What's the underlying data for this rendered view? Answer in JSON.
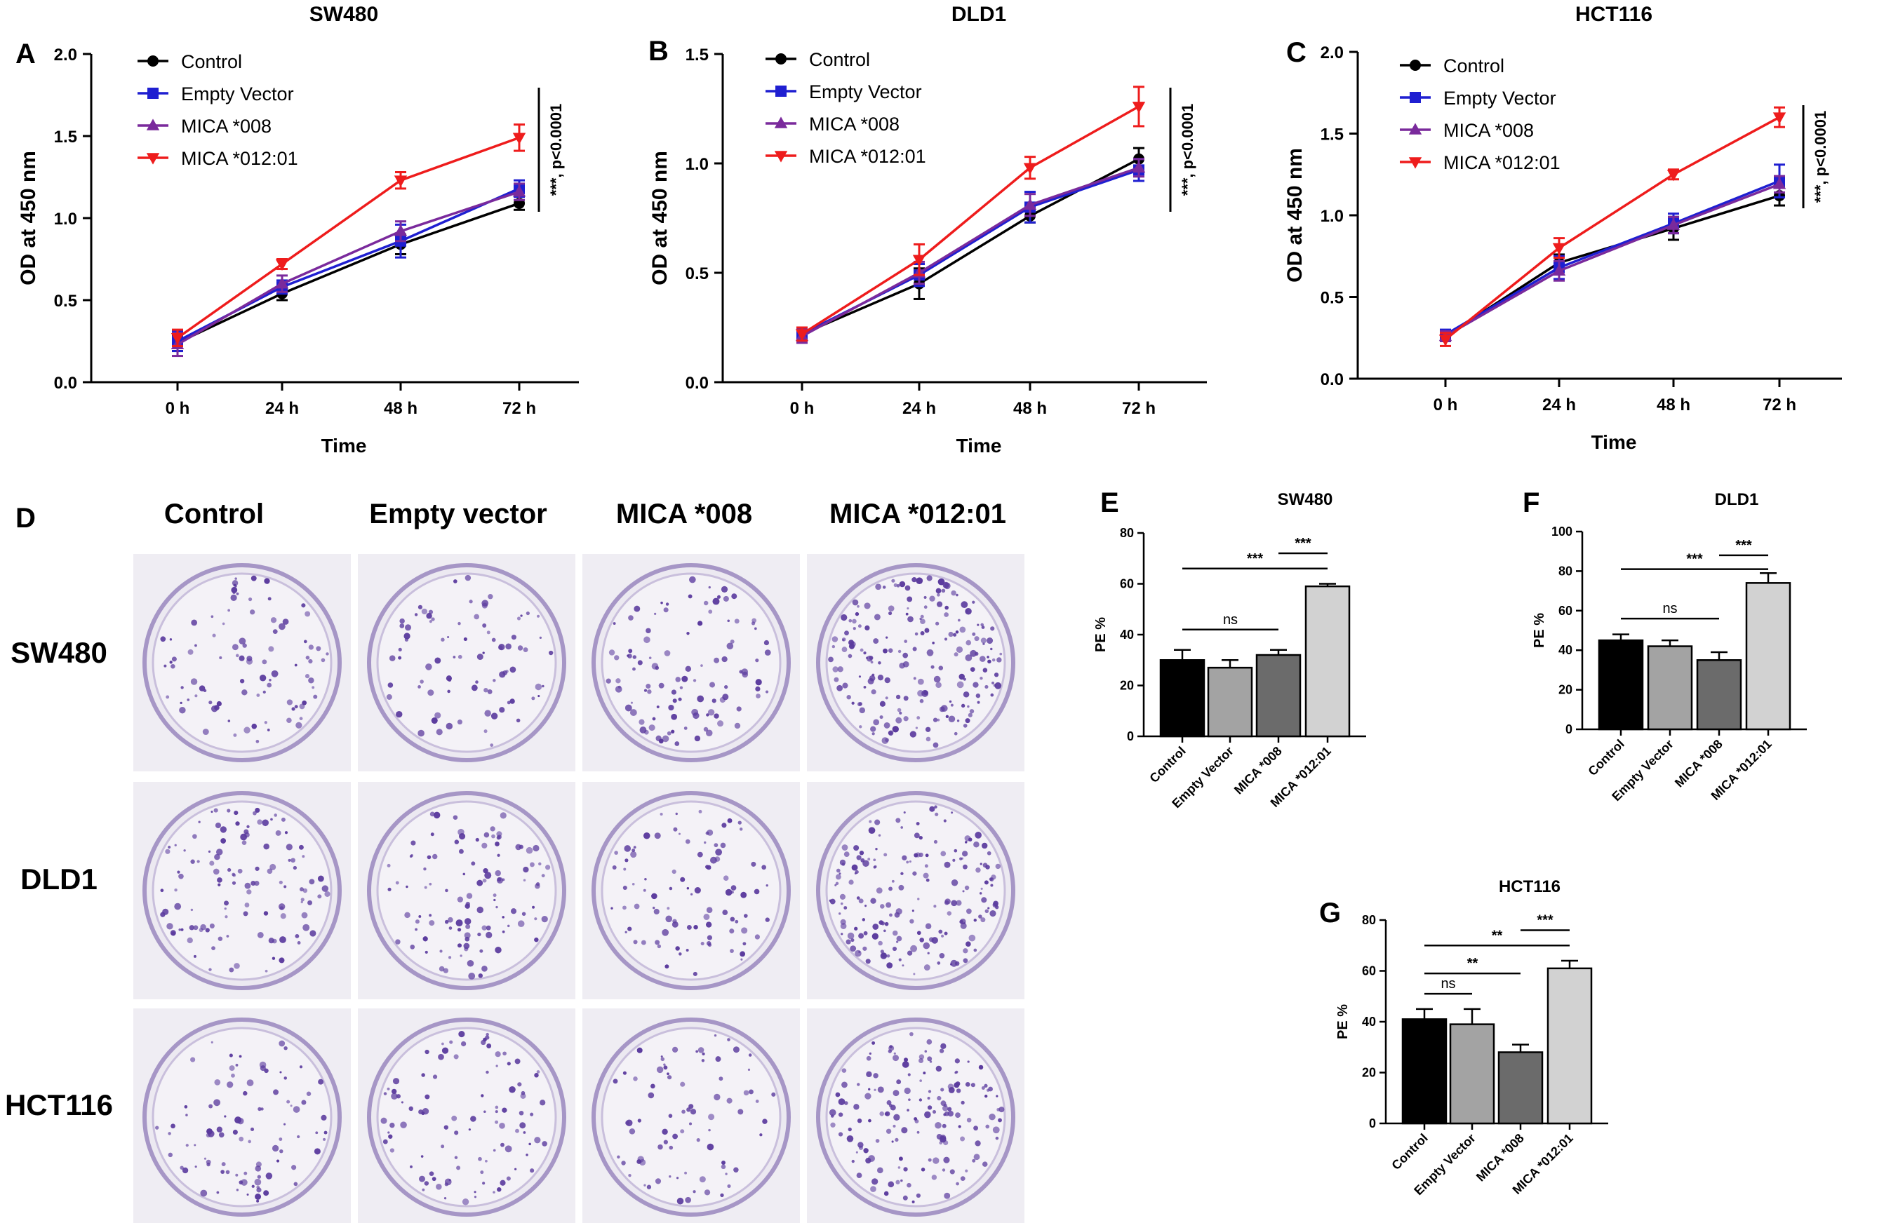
{
  "colors": {
    "control": "#000000",
    "empty_vector": "#1f1fd1",
    "mica008": "#7a2a9c",
    "mica012": "#ee1c1c",
    "plate_stain": "#5b3b9e",
    "plate_bg": "#ece9f1"
  },
  "icons": {
    "control": "circle-marker",
    "empty_vector": "square-marker",
    "mica008": "triangle-up-marker",
    "mica012": "triangle-down-marker"
  },
  "panels": {
    "A": "A",
    "B": "B",
    "C": "C",
    "D": "D",
    "E": "E",
    "F": "F",
    "G": "G"
  },
  "panel_d": {
    "columns": [
      "Control",
      "Empty vector",
      "MICA *008",
      "MICA *012:01"
    ],
    "rows": [
      "SW480",
      "DLD1",
      "HCT116"
    ],
    "colony_levels": [
      [
        0.35,
        0.32,
        0.4,
        0.75
      ],
      [
        0.45,
        0.42,
        0.36,
        0.7
      ],
      [
        0.35,
        0.38,
        0.3,
        0.6
      ]
    ]
  },
  "chart_data": [
    {
      "id": "A",
      "type": "line",
      "title": "SW480",
      "xlabel": "Time",
      "ylabel": "OD at 450 nm",
      "categories": [
        "0 h",
        "24 h",
        "48 h",
        "72 h"
      ],
      "ylim": [
        0,
        2.0
      ],
      "yticks": [
        "0.0",
        "0.5",
        "1.0",
        "1.5",
        "2.0"
      ],
      "series": [
        {
          "name": "Control",
          "values": [
            0.24,
            0.54,
            0.84,
            1.09
          ],
          "err": [
            0.05,
            0.04,
            0.06,
            0.04
          ]
        },
        {
          "name": "Empty Vector",
          "values": [
            0.25,
            0.58,
            0.86,
            1.18
          ],
          "err": [
            0.06,
            0.04,
            0.1,
            0.05
          ]
        },
        {
          "name": "MICA *008",
          "values": [
            0.23,
            0.6,
            0.92,
            1.16
          ],
          "err": [
            0.07,
            0.05,
            0.06,
            0.05
          ]
        },
        {
          "name": "MICA *012:01",
          "values": [
            0.27,
            0.72,
            1.23,
            1.49
          ],
          "err": [
            0.05,
            0.03,
            0.05,
            0.08
          ]
        }
      ],
      "annotation": "***, p<0.0001"
    },
    {
      "id": "B",
      "type": "line",
      "title": "DLD1",
      "xlabel": "Time",
      "ylabel": "OD at 450 nm",
      "categories": [
        "0 h",
        "24 h",
        "48 h",
        "72 h"
      ],
      "ylim": [
        0,
        1.5
      ],
      "yticks": [
        "0.0",
        "0.5",
        "1.0",
        "1.5"
      ],
      "series": [
        {
          "name": "Control",
          "values": [
            0.22,
            0.45,
            0.76,
            1.02
          ],
          "err": [
            0.03,
            0.07,
            0.03,
            0.05
          ]
        },
        {
          "name": "Empty Vector",
          "values": [
            0.22,
            0.49,
            0.8,
            0.97
          ],
          "err": [
            0.03,
            0.05,
            0.07,
            0.05
          ]
        },
        {
          "name": "MICA *008",
          "values": [
            0.21,
            0.5,
            0.81,
            0.98
          ],
          "err": [
            0.03,
            0.05,
            0.05,
            0.04
          ]
        },
        {
          "name": "MICA *012:01",
          "values": [
            0.22,
            0.56,
            0.98,
            1.26
          ],
          "err": [
            0.03,
            0.07,
            0.05,
            0.09
          ]
        }
      ],
      "annotation": "***, p<0.0001"
    },
    {
      "id": "C",
      "type": "line",
      "title": "HCT116",
      "xlabel": "Time",
      "ylabel": "OD at 450 nm",
      "categories": [
        "0 h",
        "24 h",
        "48 h",
        "72 h"
      ],
      "ylim": [
        0,
        2.0
      ],
      "yticks": [
        "0.0",
        "0.5",
        "1.0",
        "1.5",
        "2.0"
      ],
      "series": [
        {
          "name": "Control",
          "values": [
            0.26,
            0.71,
            0.92,
            1.12
          ],
          "err": [
            0.03,
            0.05,
            0.07,
            0.06
          ]
        },
        {
          "name": "Empty Vector",
          "values": [
            0.27,
            0.68,
            0.95,
            1.21
          ],
          "err": [
            0.03,
            0.07,
            0.06,
            0.1
          ]
        },
        {
          "name": "MICA *008",
          "values": [
            0.26,
            0.66,
            0.94,
            1.19
          ],
          "err": [
            0.03,
            0.06,
            0.05,
            0.05
          ]
        },
        {
          "name": "MICA *012:01",
          "values": [
            0.24,
            0.8,
            1.25,
            1.6
          ],
          "err": [
            0.04,
            0.06,
            0.03,
            0.06
          ]
        }
      ],
      "annotation": "***, p<0.0001"
    },
    {
      "id": "E",
      "type": "bar",
      "title": "SW480",
      "ylabel": "PE %",
      "categories": [
        "Control",
        "Empty Vector",
        "MICA *008",
        "MICA *012:01"
      ],
      "values": [
        30,
        27,
        32,
        59
      ],
      "err": [
        4,
        3,
        2,
        1
      ],
      "ylim": [
        0,
        80
      ],
      "yticks": [
        "0",
        "20",
        "40",
        "60",
        "80"
      ],
      "bar_colors": [
        "#000000",
        "#a3a3a3",
        "#6b6b6b",
        "#d2d2d2"
      ],
      "brackets": [
        {
          "from": 2,
          "to": 3,
          "label": "***",
          "y": 72
        },
        {
          "from": 0,
          "to": 3,
          "label": "***",
          "y": 66
        },
        {
          "from": 0,
          "to": 2,
          "label": "ns",
          "y": 42
        }
      ]
    },
    {
      "id": "F",
      "type": "bar",
      "title": "DLD1",
      "ylabel": "PE %",
      "categories": [
        "Control",
        "Empty Vector",
        "MICA *008",
        "MICA *012:01"
      ],
      "values": [
        45,
        42,
        35,
        74
      ],
      "err": [
        3,
        3,
        4,
        5
      ],
      "ylim": [
        0,
        100
      ],
      "yticks": [
        "0",
        "20",
        "40",
        "60",
        "80",
        "100"
      ],
      "bar_colors": [
        "#000000",
        "#a3a3a3",
        "#6b6b6b",
        "#d2d2d2"
      ],
      "brackets": [
        {
          "from": 2,
          "to": 3,
          "label": "***",
          "y": 88
        },
        {
          "from": 0,
          "to": 3,
          "label": "***",
          "y": 81
        },
        {
          "from": 0,
          "to": 2,
          "label": "ns",
          "y": 56
        }
      ]
    },
    {
      "id": "G",
      "type": "bar",
      "title": "HCT116",
      "ylabel": "PE %",
      "categories": [
        "Control",
        "Empty Vector",
        "MICA *008",
        "MICA *012:01"
      ],
      "values": [
        41,
        39,
        28,
        61
      ],
      "err": [
        4,
        6,
        3,
        3
      ],
      "ylim": [
        0,
        80
      ],
      "yticks": [
        "0",
        "20",
        "40",
        "60",
        "80"
      ],
      "bar_colors": [
        "#000000",
        "#a3a3a3",
        "#6b6b6b",
        "#d2d2d2"
      ],
      "brackets": [
        {
          "from": 2,
          "to": 3,
          "label": "***",
          "y": 76
        },
        {
          "from": 0,
          "to": 3,
          "label": "**",
          "y": 70
        },
        {
          "from": 0,
          "to": 2,
          "label": "**",
          "y": 59
        },
        {
          "from": 0,
          "to": 1,
          "label": "ns",
          "y": 51
        }
      ]
    }
  ]
}
